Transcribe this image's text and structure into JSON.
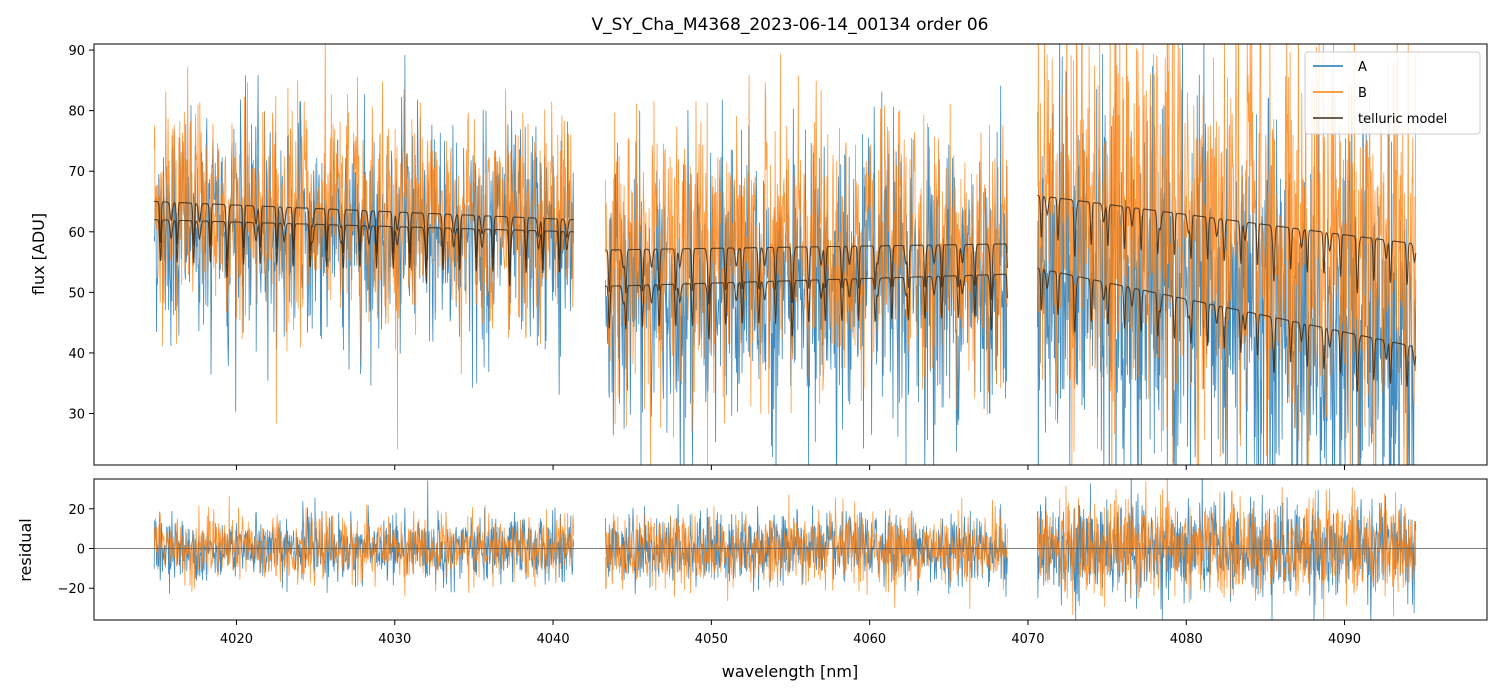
{
  "chart_data": [
    {
      "panel": "top",
      "type": "line",
      "title": "V_SY_Cha_M4368_2023-06-14_00134  order 06",
      "xlabel": "",
      "ylabel": "flux [ADU]",
      "xlim": [
        4011,
        4099
      ],
      "ylim": [
        21.5,
        91
      ],
      "x_ticks": [
        4020,
        4030,
        4040,
        4050,
        4060,
        4070,
        4080,
        4090
      ],
      "y_ticks": [
        30,
        40,
        50,
        60,
        70,
        80,
        90
      ],
      "y_tick_labels": [
        "30",
        "40",
        "50",
        "60",
        "70",
        "80",
        "90"
      ],
      "legend": {
        "position": "top-right",
        "entries": [
          "A",
          "B",
          "telluric model"
        ]
      },
      "segments": [
        {
          "x_range": [
            4014.8,
            4041.3
          ],
          "A_level": [
            62,
            60
          ],
          "B_level": [
            65,
            62
          ],
          "noise_A": 9,
          "noise_B": 9
        },
        {
          "x_range": [
            4043.3,
            4068.7
          ],
          "A_level": [
            51,
            53
          ],
          "B_level": [
            57,
            58
          ],
          "noise_A": 11,
          "noise_B": 11
        },
        {
          "x_range": [
            4070.6,
            4094.5
          ],
          "A_level": [
            54,
            41
          ],
          "B_level": [
            66,
            58
          ],
          "noise_A": 15,
          "noise_B": 17
        }
      ],
      "series": [
        {
          "name": "A",
          "color": "#1f77b4"
        },
        {
          "name": "B",
          "color": "#ff7f0e"
        },
        {
          "name": "telluric model",
          "color": "#3a2a1a"
        }
      ],
      "telluric_line_spacing_nm": 1.05
    },
    {
      "panel": "bottom",
      "type": "line",
      "xlabel": "wavelength [nm]",
      "ylabel": "residual",
      "xlim": [
        4011,
        4099
      ],
      "ylim": [
        -36,
        35
      ],
      "x_ticks": [
        4020,
        4030,
        4040,
        4050,
        4060,
        4070,
        4080,
        4090
      ],
      "x_tick_labels": [
        "4020",
        "4030",
        "4040",
        "4050",
        "4060",
        "4070",
        "4080",
        "4090"
      ],
      "y_ticks": [
        -20,
        0,
        20
      ],
      "y_tick_labels": [
        "−20",
        "0",
        "20"
      ],
      "zero_line": 0,
      "segments": [
        {
          "x_range": [
            4014.8,
            4041.3
          ],
          "noise": 8
        },
        {
          "x_range": [
            4043.3,
            4068.7
          ],
          "noise": 9
        },
        {
          "x_range": [
            4070.6,
            4094.5
          ],
          "noise": 12
        }
      ]
    }
  ]
}
